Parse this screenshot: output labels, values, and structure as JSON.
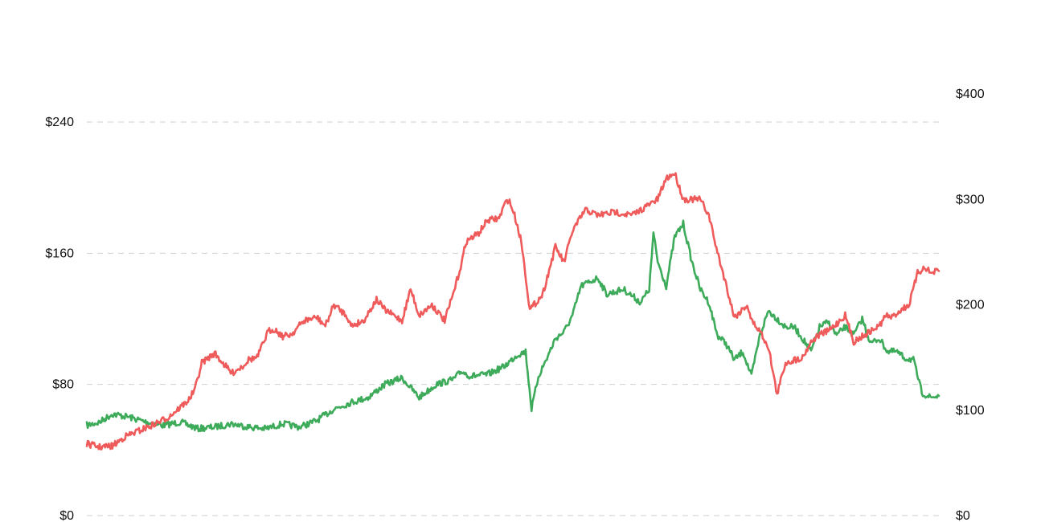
{
  "chart_data": {
    "type": "line",
    "title": "",
    "xlabel": "",
    "grid": "horizontal dashed",
    "legend": "none",
    "left_axis": {
      "ylim": [
        0,
        320
      ],
      "ticks": [
        0,
        80,
        160,
        240
      ],
      "tick_labels": [
        "$0",
        "$80",
        "$160",
        "$240"
      ]
    },
    "right_axis": {
      "ylim": [
        0,
        400
      ],
      "ticks": [
        0,
        100,
        200,
        300,
        400
      ],
      "tick_labels": [
        "$0",
        "$100",
        "$200",
        "$300",
        "$400"
      ]
    },
    "x_range": [
      0,
      100
    ],
    "series": [
      {
        "axis": "right",
        "color": "#ef5a5a",
        "x": [
          0,
          1.5,
          3,
          4.5,
          6,
          8,
          9.5,
          11,
          12,
          12.7,
          13.5,
          15,
          17,
          18.3,
          19,
          20,
          21.3,
          22,
          23,
          24,
          25.5,
          27,
          28,
          29,
          30.5,
          31,
          32.5,
          34,
          35,
          37,
          38,
          39,
          40.5,
          42,
          43,
          44,
          44.5,
          46,
          47,
          48.4,
          49,
          49.5,
          50.2,
          51,
          52,
          53.5,
          55,
          56,
          57,
          58.5,
          60,
          62,
          64,
          66,
          67,
          68,
          69,
          70,
          72,
          73,
          74,
          75,
          76,
          77.5,
          78,
          79,
          80,
          81,
          82,
          84,
          85,
          86,
          87,
          88,
          89,
          90,
          91,
          92,
          93,
          93.8,
          94.5,
          95.5,
          96.5,
          97.5,
          98.4,
          99,
          100
        ],
        "y": [
          68,
          65,
          66,
          75,
          80,
          87,
          93,
          103,
          110,
          120,
          145,
          154,
          135,
          142,
          148,
          150,
          175,
          177,
          170,
          172,
          185,
          188,
          180,
          200,
          190,
          180,
          185,
          205,
          195,
          185,
          215,
          190,
          200,
          185,
          210,
          240,
          260,
          268,
          280,
          282,
          295,
          300,
          285,
          260,
          195,
          210,
          255,
          240,
          270,
          290,
          285,
          288,
          285,
          295,
          300,
          320,
          325,
          300,
          300,
          285,
          250,
          220,
          188,
          200,
          185,
          175,
          160,
          115,
          145,
          150,
          165,
          172,
          175,
          182,
          190,
          165,
          170,
          175,
          180,
          190,
          188,
          195,
          200,
          230,
          236,
          230,
          232
        ]
      },
      {
        "axis": "left",
        "color": "#3dab5a",
        "x": [
          0,
          1.5,
          3,
          5,
          7,
          9,
          11,
          13,
          15,
          17,
          19,
          21,
          23,
          25,
          27,
          29,
          31,
          33,
          35,
          37,
          39,
          41,
          43,
          44,
          45,
          47,
          49,
          50.5,
          51.5,
          52.2,
          53,
          54,
          55,
          56,
          57,
          58,
          60,
          61,
          63,
          65,
          66,
          66.5,
          67,
          68,
          69,
          70,
          71,
          72,
          73,
          74,
          75,
          76,
          77,
          78,
          79,
          80,
          81,
          82,
          83,
          84,
          85,
          86,
          87,
          88,
          89,
          90,
          91,
          92,
          93,
          94,
          95,
          96,
          97,
          98,
          99,
          100
        ],
        "y": [
          55,
          57,
          62,
          60,
          57,
          55,
          57,
          53,
          54,
          56,
          54,
          53,
          56,
          54,
          58,
          65,
          69,
          72,
          80,
          84,
          72,
          80,
          83,
          88,
          85,
          86,
          91,
          98,
          100,
          65,
          85,
          96,
          108,
          112,
          122,
          140,
          145,
          135,
          138,
          130,
          138,
          172,
          155,
          140,
          170,
          178,
          155,
          138,
          130,
          110,
          105,
          95,
          100,
          85,
          110,
          125,
          120,
          115,
          115,
          108,
          100,
          115,
          118,
          110,
          115,
          110,
          120,
          105,
          108,
          100,
          100,
          96,
          95,
          75,
          72,
          73
        ]
      }
    ]
  }
}
